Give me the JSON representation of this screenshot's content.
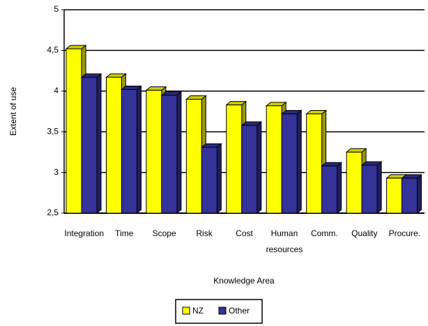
{
  "chart_data": {
    "type": "bar",
    "y_label": "Extent of use",
    "x_label": "Knowledge Area",
    "categories": [
      "Integration",
      "Time",
      "Scope",
      "Risk",
      "Cost",
      "Human resources",
      "Comm.",
      "Quality",
      "Procure."
    ],
    "series": [
      {
        "name": "NZ",
        "color": "#ffff00",
        "values": [
          4.52,
          4.17,
          4.01,
          3.9,
          3.83,
          3.82,
          3.72,
          3.25,
          2.93
        ]
      },
      {
        "name": "Other",
        "color": "#333399",
        "values": [
          4.17,
          4.02,
          3.95,
          3.31,
          3.58,
          3.72,
          3.08,
          3.09,
          2.93
        ]
      }
    ],
    "ylim": [
      2.5,
      5
    ],
    "yticks": [
      {
        "value": 2.5,
        "label": "2,5"
      },
      3,
      {
        "value": 3.5,
        "label": "3,5"
      },
      4,
      {
        "value": 4.5,
        "label": "4,5"
      },
      5
    ],
    "grid": true,
    "legend": "bottom"
  }
}
